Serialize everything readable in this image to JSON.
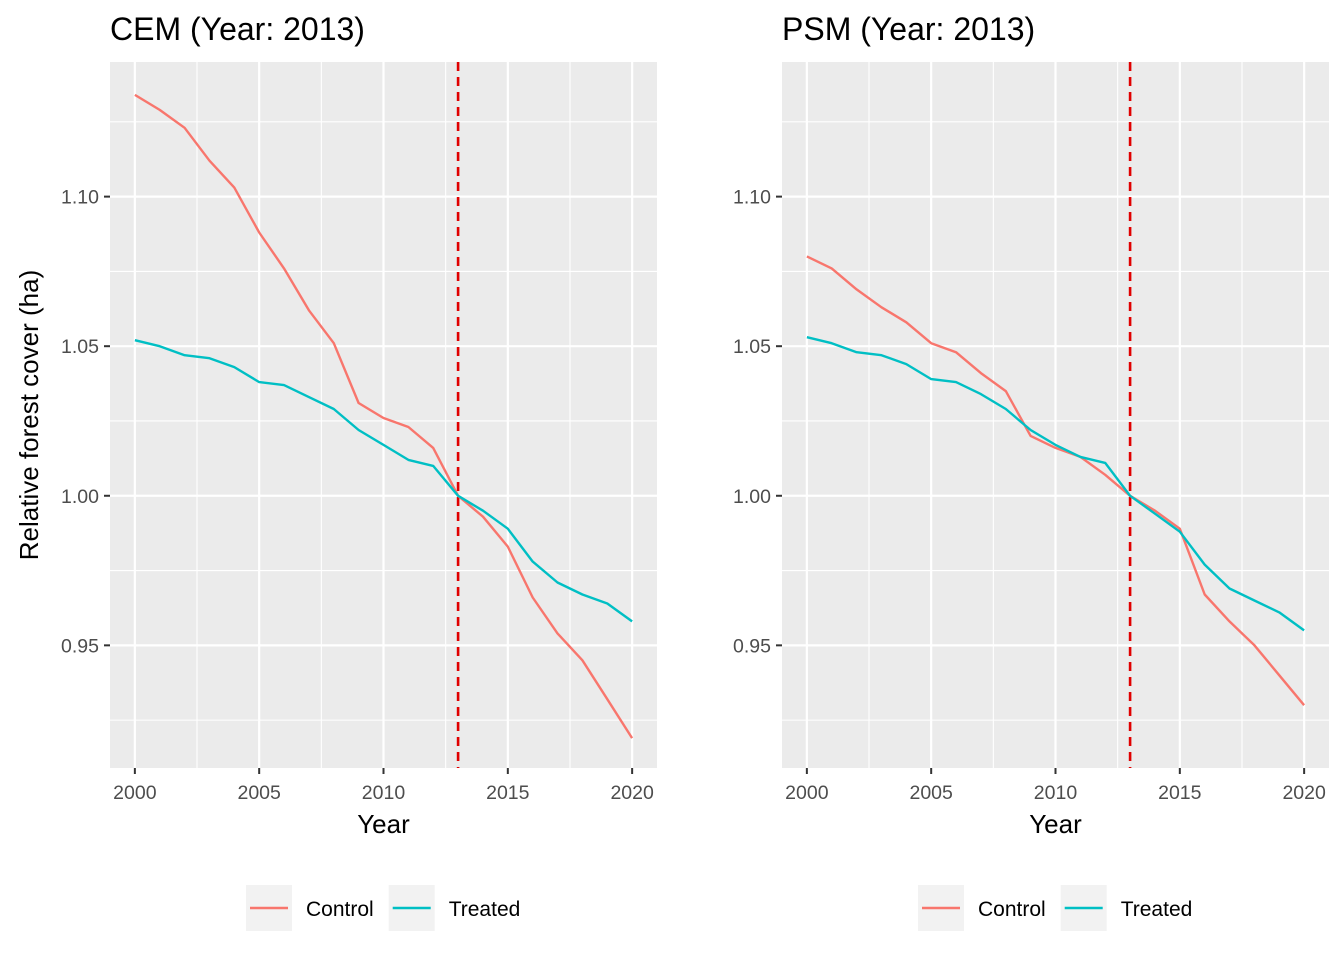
{
  "chart_data": [
    {
      "type": "line",
      "title": "CEM (Year: 2013)",
      "xlabel": "Year",
      "ylabel": "Relative forest cover (ha)",
      "xlim": [
        1999,
        2021
      ],
      "ylim": [
        0.909,
        1.145
      ],
      "x_ticks": [
        2000,
        2005,
        2010,
        2015,
        2020
      ],
      "y_ticks": [
        0.95,
        1.0,
        1.05,
        1.1
      ],
      "y_tick_labels": [
        "0.95",
        "1.00",
        "1.05",
        "1.10"
      ],
      "vline": {
        "x": 2013,
        "color": "#e00000",
        "style": "dashed"
      },
      "x": [
        2000,
        2001,
        2002,
        2003,
        2004,
        2005,
        2006,
        2007,
        2008,
        2009,
        2010,
        2011,
        2012,
        2013,
        2014,
        2015,
        2016,
        2017,
        2018,
        2019,
        2020
      ],
      "series": [
        {
          "name": "Control",
          "color": "#F8766D",
          "values": [
            1.134,
            1.129,
            1.123,
            1.112,
            1.103,
            1.088,
            1.076,
            1.062,
            1.051,
            1.031,
            1.026,
            1.023,
            1.016,
            1.0,
            0.993,
            0.983,
            0.966,
            0.954,
            0.945,
            0.932,
            0.919
          ]
        },
        {
          "name": "Treated",
          "color": "#00BFC4",
          "values": [
            1.052,
            1.05,
            1.047,
            1.046,
            1.043,
            1.038,
            1.037,
            1.033,
            1.029,
            1.022,
            1.017,
            1.012,
            1.01,
            1.0,
            0.995,
            0.989,
            0.978,
            0.971,
            0.967,
            0.964,
            0.958
          ]
        }
      ],
      "legend": {
        "position": "bottom"
      }
    },
    {
      "type": "line",
      "title": "PSM (Year: 2013)",
      "xlabel": "Year",
      "ylabel": "",
      "xlim": [
        1999,
        2021
      ],
      "ylim": [
        0.909,
        1.145
      ],
      "x_ticks": [
        2000,
        2005,
        2010,
        2015,
        2020
      ],
      "y_ticks": [
        0.95,
        1.0,
        1.05,
        1.1
      ],
      "y_tick_labels": [
        "0.95",
        "1.00",
        "1.05",
        "1.10"
      ],
      "vline": {
        "x": 2013,
        "color": "#e00000",
        "style": "dashed"
      },
      "x": [
        2000,
        2001,
        2002,
        2003,
        2004,
        2005,
        2006,
        2007,
        2008,
        2009,
        2010,
        2011,
        2012,
        2013,
        2014,
        2015,
        2016,
        2017,
        2018,
        2019,
        2020
      ],
      "series": [
        {
          "name": "Control",
          "color": "#F8766D",
          "values": [
            1.08,
            1.076,
            1.069,
            1.063,
            1.058,
            1.051,
            1.048,
            1.041,
            1.035,
            1.02,
            1.016,
            1.013,
            1.007,
            1.0,
            0.995,
            0.989,
            0.967,
            0.958,
            0.95,
            0.94,
            0.93
          ]
        },
        {
          "name": "Treated",
          "color": "#00BFC4",
          "values": [
            1.053,
            1.051,
            1.048,
            1.047,
            1.044,
            1.039,
            1.038,
            1.034,
            1.029,
            1.022,
            1.017,
            1.013,
            1.011,
            1.0,
            0.994,
            0.988,
            0.977,
            0.969,
            0.965,
            0.961,
            0.955
          ]
        }
      ],
      "legend": {
        "position": "bottom"
      }
    }
  ]
}
